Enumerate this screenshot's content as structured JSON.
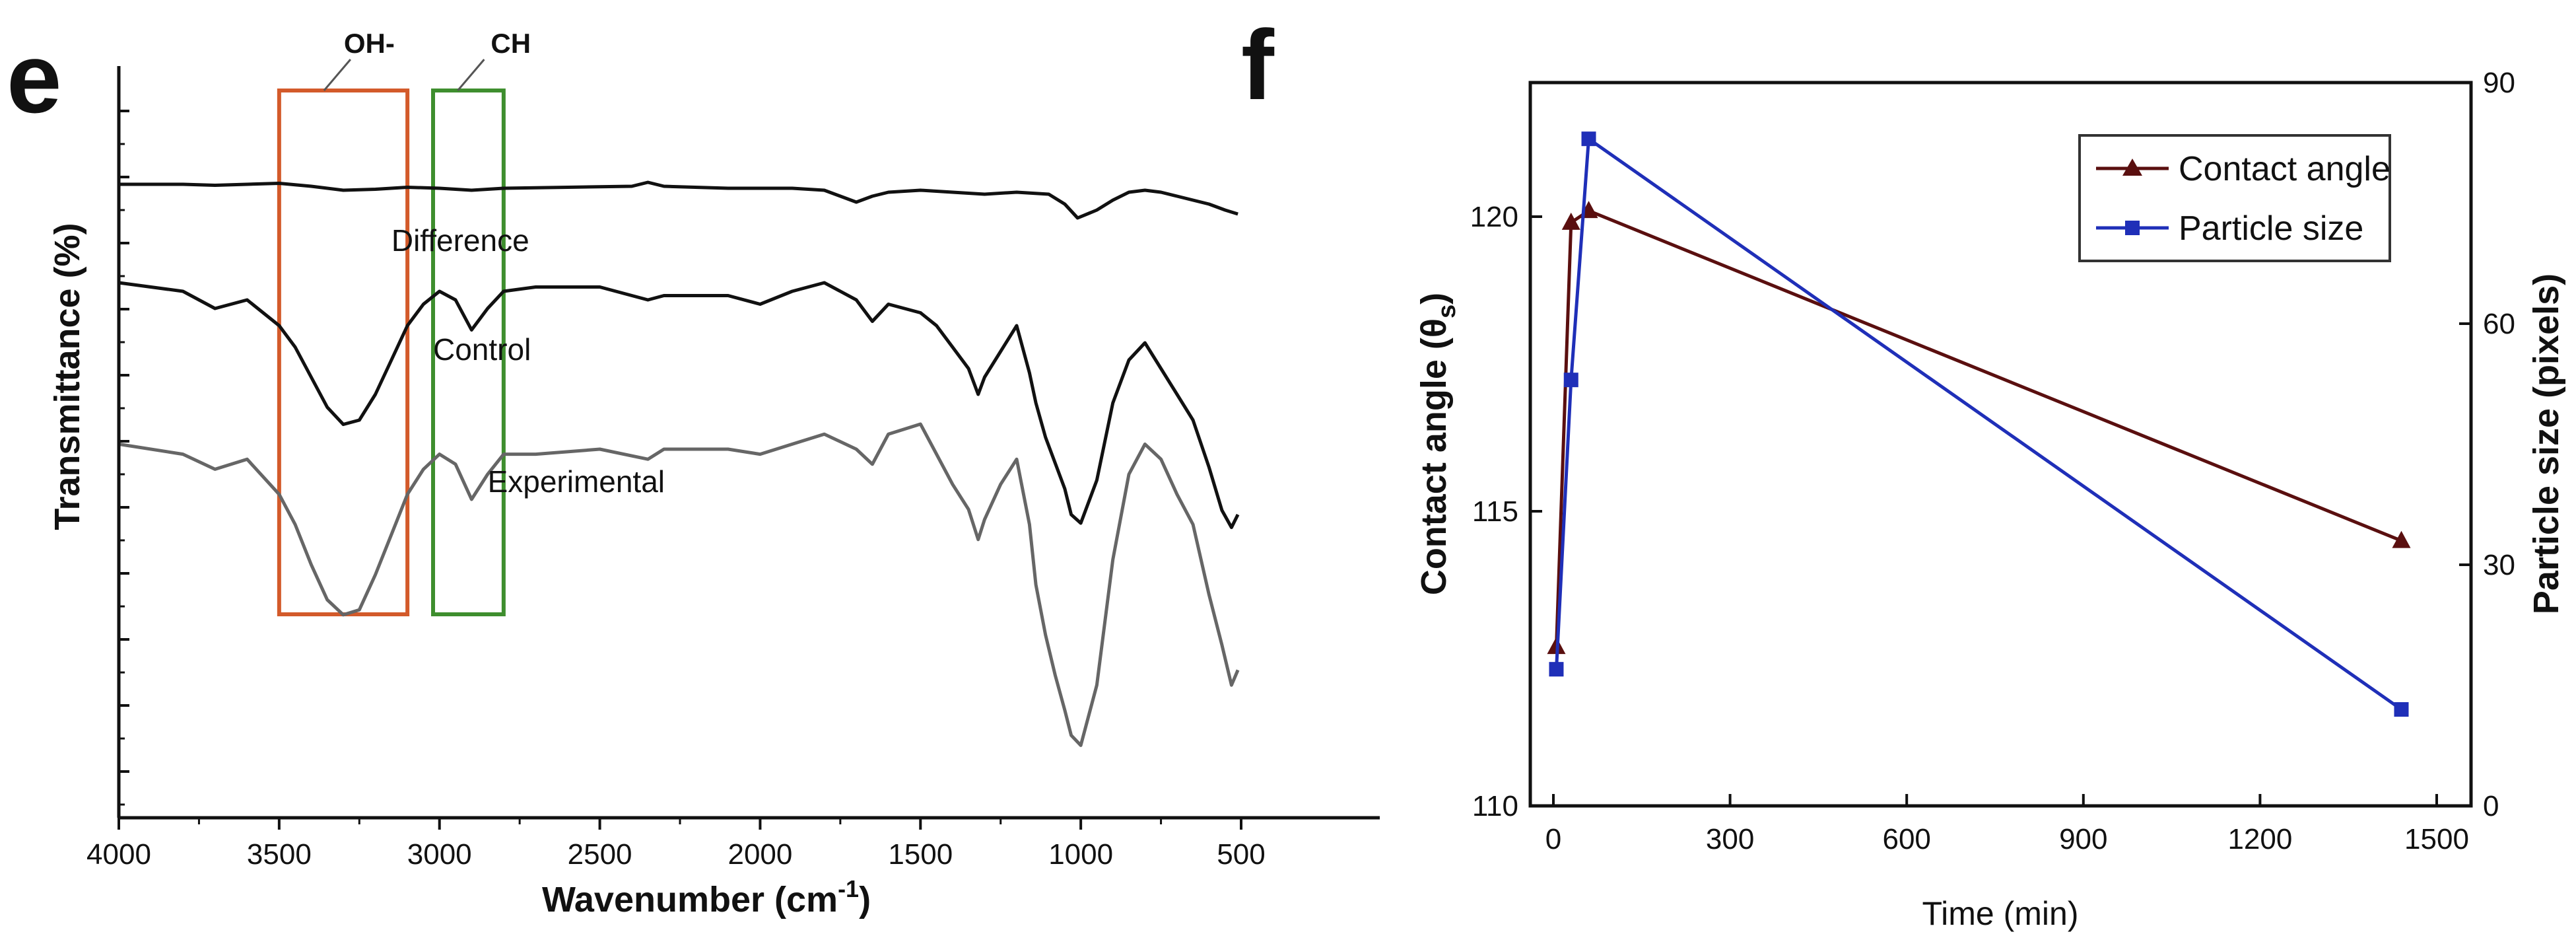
{
  "colors": {
    "difference": "#111111",
    "control": "#111111",
    "experimental": "#666666",
    "oh_box": "#d35a2a",
    "ch_box": "#3e8e2e",
    "contact_angle": "#5a0f0f",
    "particle_size": "#1f2fb8"
  },
  "chart_data": [
    {
      "panel": "e",
      "type": "line",
      "xlabel": "Wavenumber (cm",
      "xlabel_sup": "-1",
      "xlabel_end": ")",
      "ylabel": "Transmittance (%)",
      "xlim": [
        4000,
        500
      ],
      "x_reversed": true,
      "x_ticks": [
        4000,
        3500,
        3000,
        2500,
        2000,
        1500,
        1000,
        500
      ],
      "y_ticks_labeled": false,
      "annotations": [
        {
          "label": "OH-",
          "x_range": [
            3500,
            3100
          ]
        },
        {
          "label": "CH",
          "x_range": [
            3020,
            2800
          ]
        }
      ],
      "series": [
        {
          "name": "Difference",
          "x": [
            4000,
            3800,
            3700,
            3600,
            3500,
            3400,
            3300,
            3200,
            3100,
            3000,
            2900,
            2800,
            2600,
            2400,
            2350,
            2300,
            2100,
            2000,
            1900,
            1800,
            1750,
            1700,
            1650,
            1600,
            1500,
            1400,
            1300,
            1200,
            1100,
            1050,
            1010,
            950,
            900,
            850,
            800,
            750,
            700,
            650,
            600,
            550,
            510
          ],
          "y": [
            96.0,
            96.0,
            95.5,
            96.0,
            96.5,
            95.0,
            93.0,
            93.5,
            94.5,
            94.0,
            93.0,
            94.0,
            94.5,
            95.0,
            97.0,
            95.0,
            94.0,
            94.0,
            94.0,
            93.0,
            90.0,
            87.0,
            90.0,
            92.0,
            93.0,
            92.0,
            91.0,
            92.0,
            91.0,
            86.0,
            79.0,
            83.0,
            88.0,
            92.0,
            93.0,
            92.0,
            90.0,
            88.0,
            86.0,
            83.0,
            81.0
          ]
        },
        {
          "name": "Control",
          "x": [
            4000,
            3800,
            3700,
            3600,
            3500,
            3450,
            3400,
            3350,
            3300,
            3250,
            3200,
            3150,
            3100,
            3050,
            3000,
            2950,
            2900,
            2850,
            2800,
            2700,
            2500,
            2350,
            2300,
            2100,
            2000,
            1900,
            1800,
            1700,
            1650,
            1600,
            1500,
            1450,
            1400,
            1350,
            1320,
            1300,
            1250,
            1200,
            1160,
            1140,
            1110,
            1080,
            1050,
            1030,
            1000,
            950,
            900,
            850,
            800,
            750,
            700,
            650,
            600,
            560,
            530,
            510
          ],
          "y": [
            78.0,
            76.0,
            72.0,
            74.0,
            68.0,
            63.0,
            56.0,
            49.0,
            45.0,
            46.0,
            52.0,
            60.0,
            68.0,
            73.0,
            76.0,
            74.0,
            67.0,
            72.0,
            76.0,
            77.0,
            77.0,
            74.0,
            75.0,
            75.0,
            73.0,
            76.0,
            78.0,
            74.0,
            69.0,
            73.0,
            71.0,
            68.0,
            63.0,
            58.0,
            52.0,
            56.0,
            62.0,
            68.0,
            57.0,
            50.0,
            42.0,
            36.0,
            30.0,
            24.0,
            22.0,
            32.0,
            50.0,
            60.0,
            64.0,
            58.0,
            52.0,
            46.0,
            35.0,
            25.0,
            21.0,
            24.0
          ]
        },
        {
          "name": "Experimental",
          "x": [
            4000,
            3800,
            3700,
            3600,
            3500,
            3450,
            3400,
            3350,
            3300,
            3250,
            3200,
            3150,
            3100,
            3050,
            3000,
            2950,
            2900,
            2850,
            2800,
            2700,
            2500,
            2350,
            2300,
            2100,
            2000,
            1900,
            1800,
            1700,
            1650,
            1600,
            1500,
            1450,
            1400,
            1350,
            1320,
            1300,
            1250,
            1200,
            1160,
            1140,
            1110,
            1080,
            1050,
            1030,
            1000,
            950,
            900,
            850,
            800,
            750,
            700,
            650,
            600,
            560,
            530,
            510
          ],
          "y": [
            58.0,
            56.0,
            53.0,
            55.0,
            48.0,
            42.0,
            34.0,
            27.0,
            24.0,
            25.0,
            32.0,
            40.0,
            48.0,
            53.0,
            56.0,
            54.0,
            47.0,
            52.0,
            56.0,
            56.0,
            57.0,
            55.0,
            57.0,
            57.0,
            56.0,
            58.0,
            60.0,
            57.0,
            54.0,
            60.0,
            62.0,
            56.0,
            50.0,
            45.0,
            39.0,
            43.0,
            50.0,
            55.0,
            42.0,
            30.0,
            20.0,
            12.0,
            5.0,
            0.0,
            -2.0,
            10.0,
            35.0,
            52.0,
            58.0,
            55.0,
            48.0,
            42.0,
            28.0,
            18.0,
            10.0,
            13.0
          ]
        }
      ]
    },
    {
      "panel": "f",
      "type": "line",
      "xlabel": "Time (min)",
      "ylabel": "Contact angle (θ",
      "ylabel_sub": "s",
      "ylabel_end": ")",
      "y2label": "Particle size (pixels)",
      "xlim": [
        -50,
        1500
      ],
      "x_ticks": [
        0,
        300,
        600,
        900,
        1200,
        1500
      ],
      "ylim": [
        110,
        122
      ],
      "y_ticks": [
        110,
        115,
        120
      ],
      "y2lim": [
        0,
        90
      ],
      "y2_ticks": [
        0,
        30,
        60,
        90
      ],
      "legend": "top-right",
      "series": [
        {
          "name": "Contact angle",
          "axis": "left",
          "marker": "triangle",
          "x": [
            5,
            30,
            60,
            1440
          ],
          "y": [
            112.7,
            119.9,
            120.1,
            114.5
          ]
        },
        {
          "name": "Particle size",
          "axis": "right",
          "marker": "square",
          "x": [
            5,
            30,
            60,
            1440
          ],
          "y": [
            17,
            53,
            83,
            12
          ]
        }
      ]
    }
  ]
}
